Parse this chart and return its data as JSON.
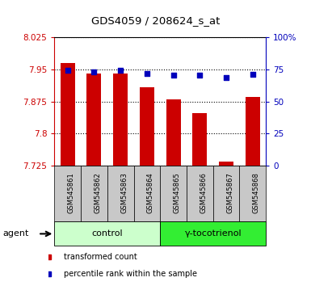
{
  "title": "GDS4059 / 208624_s_at",
  "samples": [
    "GSM545861",
    "GSM545862",
    "GSM545863",
    "GSM545864",
    "GSM545865",
    "GSM545866",
    "GSM545867",
    "GSM545868"
  ],
  "bar_values": [
    7.965,
    7.94,
    7.94,
    7.908,
    7.88,
    7.848,
    7.735,
    7.885
  ],
  "percentile_values": [
    74.0,
    73.0,
    74.0,
    72.0,
    70.5,
    70.5,
    68.5,
    71.0
  ],
  "bar_bottom": 7.725,
  "ylim_left": [
    7.725,
    8.025
  ],
  "ylim_right": [
    0,
    100
  ],
  "yticks_left": [
    7.725,
    7.8,
    7.875,
    7.95,
    8.025
  ],
  "ytick_labels_left": [
    "7.725",
    "7.8",
    "7.875",
    "7.95",
    "8.025"
  ],
  "yticks_right": [
    0,
    25,
    50,
    75,
    100
  ],
  "ytick_labels_right": [
    "0",
    "25",
    "50",
    "75",
    "100%"
  ],
  "bar_color": "#cc0000",
  "dot_color": "#0000bb",
  "grid_color": "#000000",
  "groups": [
    {
      "label": "control",
      "start": 0,
      "end": 4,
      "color": "#ccffcc"
    },
    {
      "label": "γ-tocotrienol",
      "start": 4,
      "end": 8,
      "color": "#33ee33"
    }
  ],
  "agent_label": "agent",
  "legend_items": [
    {
      "label": "transformed count",
      "color": "#cc0000"
    },
    {
      "label": "percentile rank within the sample",
      "color": "#0000bb"
    }
  ],
  "tick_label_color_left": "#cc0000",
  "tick_label_color_right": "#0000bb",
  "background_sample": "#c8c8c8"
}
